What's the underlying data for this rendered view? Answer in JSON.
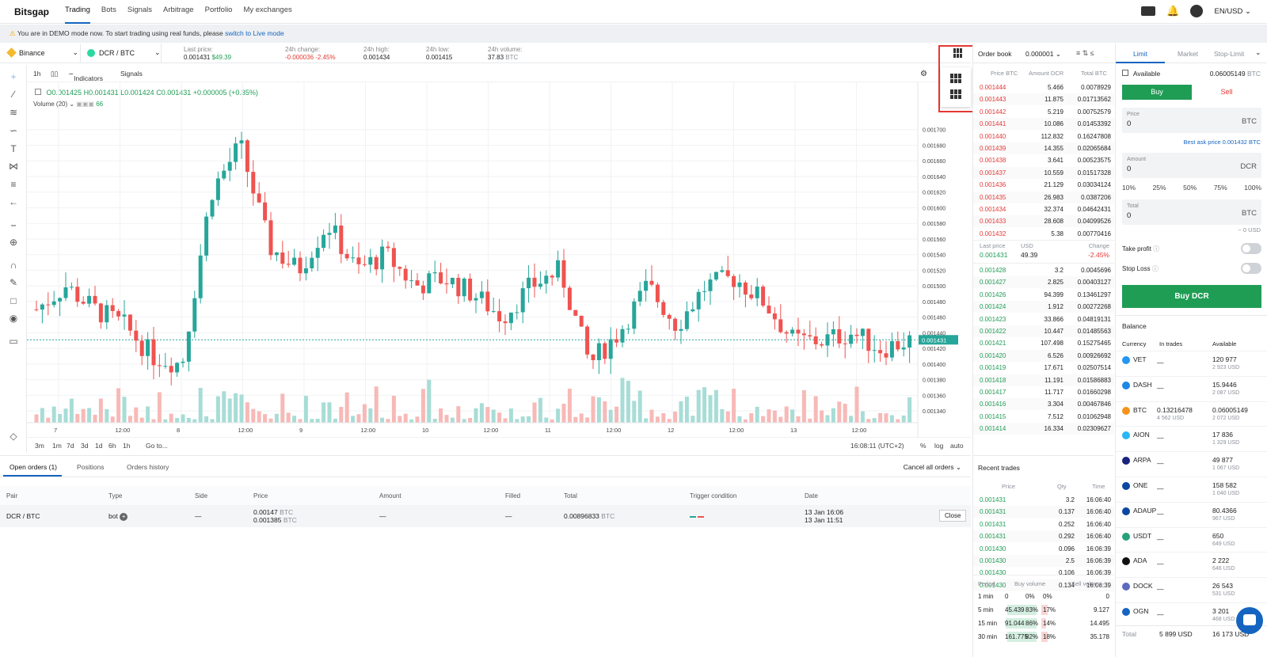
{
  "nav": {
    "logo": "Bitsgap",
    "items": [
      "Trading",
      "Bots",
      "Signals",
      "Arbitrage",
      "Portfolio",
      "My exchanges"
    ],
    "active": "Trading",
    "locale": "EN/USD"
  },
  "banner": {
    "text": "You are in DEMO mode now. To start trading using real funds, please",
    "link": "switch to Live mode"
  },
  "ticker": {
    "exchange": "Binance",
    "pair": "DCR / BTC",
    "last_price_label": "Last price:",
    "last_price": "0.001431",
    "last_price_usd": "$49.39",
    "change_label": "24h change:",
    "change": "-0.000036",
    "change_pct": "-2.45%",
    "high_label": "24h high:",
    "high": "0.001434",
    "low_label": "24h low:",
    "low": "0.001415",
    "volume_label": "24h volume:",
    "volume": "37.83",
    "volume_unit": "BTC"
  },
  "chart_toolbar": {
    "interval": "1h",
    "indicators": "Indicators",
    "signals": "Signals"
  },
  "ohlc": {
    "o": "O0.001425",
    "h": "H0.001431",
    "l": "L0.001424",
    "c": "C0.001431",
    "chg": "+0.000005 (+0.35%)",
    "volume_label": "Volume (20)",
    "volume_val": "66"
  },
  "chart_data": {
    "type": "candlestick",
    "price_axis_ticks": [
      "0.001700",
      "0.001680",
      "0.001660",
      "0.001640",
      "0.001620",
      "0.001600",
      "0.001580",
      "0.001560",
      "0.001540",
      "0.001520",
      "0.001500",
      "0.001480",
      "0.001460",
      "0.001440",
      "0.001420",
      "0.001400",
      "0.001380",
      "0.001360",
      "0.001340"
    ],
    "time_axis_ticks": [
      "7",
      "12:00",
      "8",
      "12:00",
      "9",
      "12:00",
      "10",
      "12:00",
      "11",
      "12:00",
      "12",
      "12:00",
      "13",
      "12:00"
    ],
    "current_price_label": "0.001431",
    "ylim": [
      0.00133,
      0.00172
    ]
  },
  "range_bar": {
    "ranges": [
      "3m",
      "1m",
      "7d",
      "3d",
      "1d",
      "6h",
      "1h"
    ],
    "goto": "Go to...",
    "clock": "16:08:11 (UTC+2)",
    "pct": "%",
    "log": "log",
    "auto": "auto"
  },
  "orderbook": {
    "title": "Order book",
    "precision": "0.000001",
    "cols": [
      "Price BTC",
      "Amount DCR",
      "Total BTC"
    ],
    "asks": [
      [
        "0.001444",
        "5.466",
        "0.0078929"
      ],
      [
        "0.001443",
        "11.875",
        "0.01713562"
      ],
      [
        "0.001442",
        "5.219",
        "0.00752579"
      ],
      [
        "0.001441",
        "10.086",
        "0.01453392"
      ],
      [
        "0.001440",
        "112.832",
        "0.16247808"
      ],
      [
        "0.001439",
        "14.355",
        "0.02065684"
      ],
      [
        "0.001438",
        "3.641",
        "0.00523575"
      ],
      [
        "0.001437",
        "10.559",
        "0.01517328"
      ],
      [
        "0.001436",
        "21.129",
        "0.03034124"
      ],
      [
        "0.001435",
        "26.983",
        "0.0387206"
      ],
      [
        "0.001434",
        "32.374",
        "0.04642431"
      ],
      [
        "0.001433",
        "28.608",
        "0.04099526"
      ],
      [
        "0.001432",
        "5.38",
        "0.00770416"
      ]
    ],
    "mid": {
      "last_label": "Last price",
      "usd_label": "USD",
      "change_label": "Change",
      "last": "0.001431",
      "usd": "49.39",
      "change": "-2.45%"
    },
    "bids": [
      [
        "0.001428",
        "3.2",
        "0.0045696"
      ],
      [
        "0.001427",
        "2.825",
        "0.00403127"
      ],
      [
        "0.001426",
        "94.399",
        "0.13461297"
      ],
      [
        "0.001424",
        "1.912",
        "0.00272268"
      ],
      [
        "0.001423",
        "33.866",
        "0.04819131"
      ],
      [
        "0.001422",
        "10.447",
        "0.01485563"
      ],
      [
        "0.001421",
        "107.498",
        "0.15275465"
      ],
      [
        "0.001420",
        "6.526",
        "0.00926692"
      ],
      [
        "0.001419",
        "17.671",
        "0.02507514"
      ],
      [
        "0.001418",
        "11.191",
        "0.01586883"
      ],
      [
        "0.001417",
        "11.717",
        "0.01660298"
      ],
      [
        "0.001416",
        "3.304",
        "0.00467846"
      ],
      [
        "0.001415",
        "7.512",
        "0.01062948"
      ],
      [
        "0.001414",
        "16.334",
        "0.02309627"
      ]
    ]
  },
  "recent_trades": {
    "title": "Recent trades",
    "cols": [
      "Price",
      "Qty",
      "Time"
    ],
    "rows": [
      [
        "0.001431",
        "3.2",
        "16:06:40"
      ],
      [
        "0.001431",
        "0.137",
        "16:06:40"
      ],
      [
        "0.001431",
        "0.252",
        "16:06:40"
      ],
      [
        "0.001431",
        "0.292",
        "16:06:40"
      ],
      [
        "0.001430",
        "0.096",
        "16:06:39"
      ],
      [
        "0.001430",
        "2.5",
        "16:06:39"
      ],
      [
        "0.001430",
        "0.106",
        "16:06:39"
      ],
      [
        "0.001430",
        "0.134",
        "16:06:39"
      ]
    ],
    "vol_cols": [
      "Period",
      "Buy volume",
      "Sell volume"
    ],
    "vol_rows": [
      [
        "1 min",
        "0",
        "0%",
        "0%",
        "0"
      ],
      [
        "5 min",
        "45.439",
        "83%",
        "17%",
        "9.127"
      ],
      [
        "15 min",
        "91.044",
        "86%",
        "14%",
        "14.495"
      ],
      [
        "30 min",
        "161.775",
        "82%",
        "18%",
        "35.178"
      ]
    ]
  },
  "trade": {
    "tabs": [
      "Limit",
      "Market",
      "Stop-Limit"
    ],
    "available_label": "Available",
    "available": "0.06005149",
    "available_unit": "BTC",
    "buy": "Buy",
    "sell": "Sell",
    "price_label": "Price",
    "price": "0",
    "price_unit": "BTC",
    "best_ask": "Best ask price 0.001432 BTC",
    "amount_label": "Amount",
    "amount": "0",
    "amount_unit": "DCR",
    "pcts": [
      "10%",
      "25%",
      "50%",
      "75%",
      "100%"
    ],
    "total_label": "Total",
    "total": "0",
    "total_unit": "BTC",
    "total_usd": "~ 0 USD",
    "take_profit": "Take profit",
    "stop_loss": "Stop Loss",
    "submit": "Buy DCR"
  },
  "balance": {
    "title": "Balance",
    "cols": [
      "Currency",
      "In trades",
      "Available"
    ],
    "rows": [
      {
        "sym": "VET",
        "trades": "—",
        "trades_usd": "",
        "avail": "120 977",
        "usd": "2 923 USD",
        "color": "#2196f3"
      },
      {
        "sym": "DASH",
        "trades": "—",
        "trades_usd": "",
        "avail": "15.9446",
        "usd": "2 087 USD",
        "color": "#1e88e5"
      },
      {
        "sym": "BTC",
        "trades": "0.13216478",
        "trades_usd": "4 562 USD",
        "avail": "0.06005149",
        "usd": "2 072 USD",
        "color": "#f7931a"
      },
      {
        "sym": "AION",
        "trades": "—",
        "trades_usd": "",
        "avail": "17 836",
        "usd": "1 329 USD",
        "color": "#29b6f6"
      },
      {
        "sym": "ARPA",
        "trades": "—",
        "trades_usd": "",
        "avail": "49 877",
        "usd": "1 067 USD",
        "color": "#1a237e"
      },
      {
        "sym": "ONE",
        "trades": "—",
        "trades_usd": "",
        "avail": "158 582",
        "usd": "1 040 USD",
        "color": "#0d47a1"
      },
      {
        "sym": "ADAUP",
        "trades": "—",
        "trades_usd": "",
        "avail": "80.4366",
        "usd": "967 USD",
        "color": "#0d47a1"
      },
      {
        "sym": "USDT",
        "trades": "—",
        "trades_usd": "",
        "avail": "650",
        "usd": "649 USD",
        "color": "#26a17b"
      },
      {
        "sym": "ADA",
        "trades": "—",
        "trades_usd": "",
        "avail": "2 222",
        "usd": "646 USD",
        "color": "#111"
      },
      {
        "sym": "DOCK",
        "trades": "—",
        "trades_usd": "",
        "avail": "26 543",
        "usd": "531 USD",
        "color": "#5c6bc0"
      },
      {
        "sym": "OGN",
        "trades": "—",
        "trades_usd": "",
        "avail": "3 201",
        "usd": "468 USD",
        "color": "#1565c0"
      }
    ],
    "total_label": "Total",
    "total_trades": "5 899",
    "total_trades_unit": "USD",
    "total_avail": "16 173",
    "total_avail_unit": "USD"
  },
  "orders": {
    "tabs": [
      "Open orders (1)",
      "Positions",
      "Orders history"
    ],
    "cancel_all": "Cancel all orders",
    "cols": [
      "Pair",
      "Type",
      "Side",
      "Price",
      "Amount",
      "Filled",
      "Total",
      "Trigger condition",
      "Date"
    ],
    "row": {
      "pair": "DCR / BTC",
      "type": "bot",
      "side": "—",
      "price1": "0.00147",
      "price2": "0.001385",
      "price_unit": "BTC",
      "amount": "—",
      "filled": "—",
      "total": "0.00896833",
      "total_unit": "BTC",
      "date1": "13 Jan 16:06",
      "date2": "13 Jan 11:51",
      "close": "Close"
    }
  },
  "colors": {
    "up": "#26a69a",
    "down": "#ef5350",
    "accent": "#1565c0",
    "buy": "#1f9d55"
  }
}
